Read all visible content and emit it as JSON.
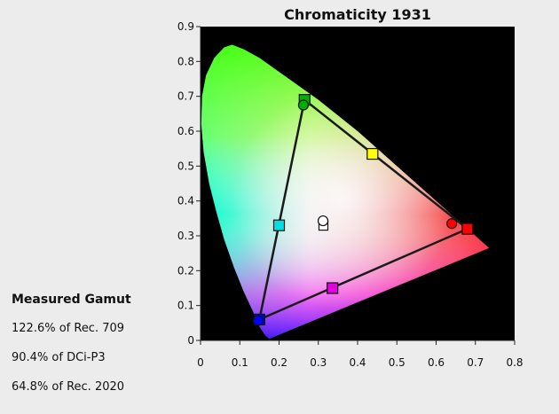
{
  "gamut_panel": {
    "title": "Measured Gamut",
    "lines": [
      "122.6% of Rec. 709",
      "90.4% of DCi-P3",
      "64.8% of Rec. 2020"
    ]
  },
  "chart_data": {
    "type": "scatter",
    "title": "Chromaticity 1931",
    "xlabel": "",
    "ylabel": "",
    "xlim": [
      0,
      0.8
    ],
    "ylim": [
      0,
      0.9
    ],
    "xticks": [
      0,
      0.1,
      0.2,
      0.3,
      0.4,
      0.5,
      0.6,
      0.7,
      0.8
    ],
    "xtick_labels": [
      "0",
      "0.1",
      "0.2",
      "0.3",
      "0.4",
      "0.5",
      "0.6",
      "0.7",
      "0.8"
    ],
    "yticks": [
      0,
      0.1,
      0.2,
      0.3,
      0.4,
      0.5,
      0.6,
      0.7,
      0.8,
      0.9
    ],
    "ytick_labels": [
      "0",
      "0.1",
      "0.2",
      "0.3",
      "0.4",
      "0.5",
      "0.6",
      "0.7",
      "0.8",
      "0.9"
    ],
    "background": "#000000",
    "spectral_locus": [
      [
        0.175,
        0.005
      ],
      [
        0.165,
        0.015
      ],
      [
        0.15,
        0.04
      ],
      [
        0.135,
        0.08
      ],
      [
        0.11,
        0.14
      ],
      [
        0.085,
        0.21
      ],
      [
        0.06,
        0.29
      ],
      [
        0.04,
        0.37
      ],
      [
        0.022,
        0.45
      ],
      [
        0.008,
        0.54
      ],
      [
        0.002,
        0.62
      ],
      [
        0.004,
        0.7
      ],
      [
        0.014,
        0.76
      ],
      [
        0.035,
        0.81
      ],
      [
        0.06,
        0.84
      ],
      [
        0.08,
        0.848
      ],
      [
        0.11,
        0.835
      ],
      [
        0.15,
        0.81
      ],
      [
        0.2,
        0.77
      ],
      [
        0.25,
        0.73
      ],
      [
        0.3,
        0.69
      ],
      [
        0.35,
        0.645
      ],
      [
        0.4,
        0.6
      ],
      [
        0.45,
        0.55
      ],
      [
        0.5,
        0.5
      ],
      [
        0.55,
        0.45
      ],
      [
        0.6,
        0.4
      ],
      [
        0.65,
        0.35
      ],
      [
        0.7,
        0.3
      ],
      [
        0.735,
        0.265
      ]
    ],
    "target_triangle": [
      {
        "point": "red",
        "x": 0.68,
        "y": 0.32,
        "color": "#ff0000"
      },
      {
        "point": "green",
        "x": 0.265,
        "y": 0.69,
        "color": "#00b000"
      },
      {
        "point": "blue",
        "x": 0.15,
        "y": 0.06,
        "color": "#0000ff"
      }
    ],
    "target_secondaries": [
      {
        "point": "yellow",
        "x": 0.438,
        "y": 0.535,
        "color": "#ffff00"
      },
      {
        "point": "cyan",
        "x": 0.2,
        "y": 0.33,
        "color": "#00e0e0"
      },
      {
        "point": "magenta",
        "x": 0.336,
        "y": 0.15,
        "color": "#e000e0"
      }
    ],
    "target_white": {
      "x": 0.313,
      "y": 0.329,
      "color": "#ffffff"
    },
    "measured": [
      {
        "point": "red",
        "x": 0.64,
        "y": 0.335,
        "color": "#ff0000"
      },
      {
        "point": "green",
        "x": 0.262,
        "y": 0.675,
        "color": "#00b000"
      },
      {
        "point": "blue",
        "x": 0.147,
        "y": 0.057,
        "color": "#0000ff"
      },
      {
        "point": "white",
        "x": 0.312,
        "y": 0.343,
        "color": "#ffffff"
      }
    ]
  }
}
